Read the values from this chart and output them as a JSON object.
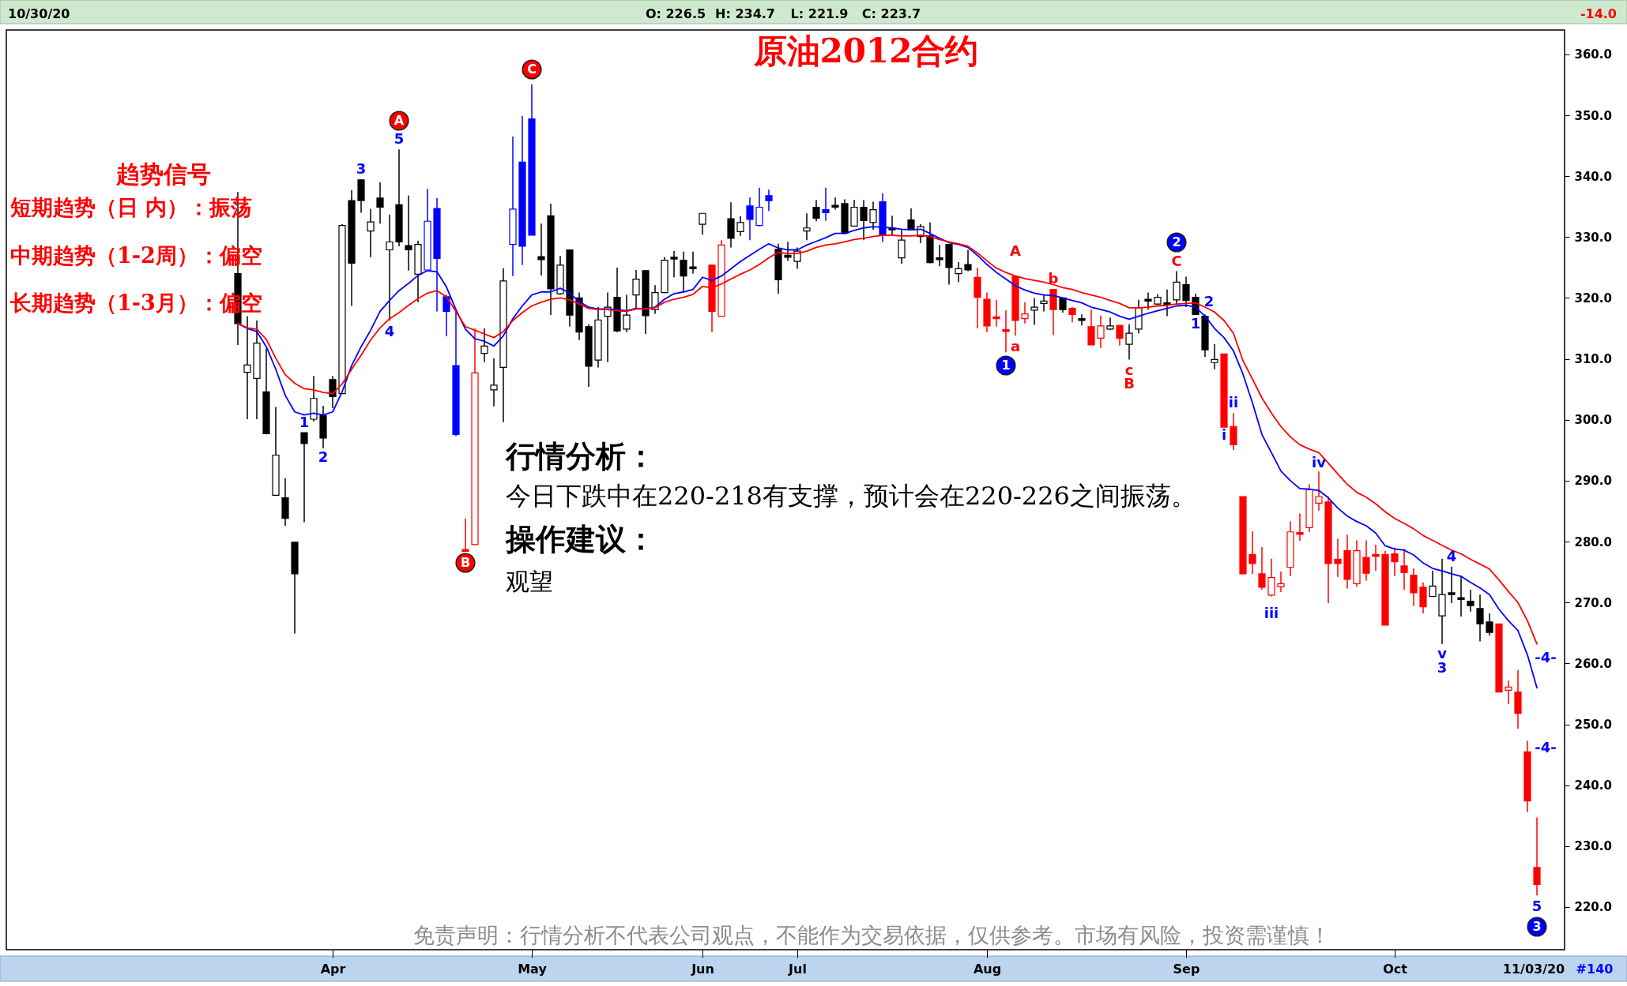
{
  "chart_data": {
    "type": "candlestick",
    "title": "原油2012合约",
    "categories": [
      null,
      null,
      null,
      null,
      null,
      null,
      null,
      null,
      null,
      null,
      "Apr",
      null,
      null,
      null,
      null,
      null,
      null,
      null,
      null,
      null,
      null,
      null,
      null,
      null,
      null,
      null,
      null,
      null,
      null,
      null,
      null,
      "May",
      null,
      null,
      null,
      null,
      null,
      null,
      null,
      null,
      null,
      null,
      null,
      null,
      null,
      null,
      null,
      null,
      null,
      "Jun",
      null,
      null,
      null,
      null,
      null,
      null,
      null,
      null,
      null,
      "Jul",
      null,
      null,
      null,
      null,
      null,
      null,
      null,
      null,
      null,
      null,
      null,
      null,
      null,
      null,
      null,
      null,
      null,
      null,
      null,
      "Aug",
      null,
      null,
      null,
      null,
      null,
      null,
      null,
      null,
      null,
      null,
      null,
      null,
      null,
      null,
      null,
      null,
      null,
      null,
      null,
      null,
      "Sep",
      null,
      null,
      null,
      null,
      null,
      null,
      null,
      null,
      null,
      null,
      null,
      null,
      null,
      null,
      null,
      null,
      null,
      null,
      null,
      null,
      null,
      "Oct",
      null,
      null,
      null,
      null,
      null,
      null,
      null,
      null,
      null,
      null,
      null,
      null,
      null,
      null,
      null
    ],
    "ohlc": [
      [
        324.0,
        337.4,
        312.3,
        315.8
      ],
      [
        307.8,
        317.0,
        300.1,
        309.0
      ],
      [
        306.8,
        316.3,
        300.1,
        312.6
      ],
      [
        304.6,
        311.7,
        297.6,
        297.7
      ],
      [
        287.6,
        302.1,
        287.6,
        294.2
      ],
      [
        287.2,
        290.4,
        282.6,
        283.8
      ],
      [
        279.9,
        279.9,
        264.9,
        274.7
      ],
      [
        297.9,
        297.9,
        283.2,
        296.1
      ],
      [
        300.1,
        307.2,
        299.7,
        303.5
      ],
      [
        300.7,
        302.3,
        295.3,
        297.0
      ],
      [
        306.6,
        307.2,
        301.9,
        303.8
      ],
      [
        304.3,
        332.1,
        304.3,
        331.9
      ],
      [
        336.0,
        337.7,
        318.7,
        325.7
      ],
      [
        339.4,
        339.4,
        334.0,
        336.0
      ],
      [
        331.0,
        334.6,
        326.7,
        332.5
      ],
      [
        336.4,
        339.0,
        332.2,
        334.9
      ],
      [
        327.9,
        333.7,
        316.3,
        329.2
      ],
      [
        335.3,
        344.4,
        328.5,
        329.2
      ],
      [
        328.6,
        336.8,
        324.5,
        327.9
      ],
      [
        323.9,
        329.4,
        319.3,
        328.8
      ],
      [
        324.6,
        337.9,
        324.5,
        332.6
      ],
      [
        334.7,
        336.4,
        317.8,
        326.5
      ],
      [
        320.2,
        320.5,
        313.7,
        317.8
      ],
      [
        308.9,
        318.1,
        297.3,
        297.6
      ],
      [
        278.7,
        283.8,
        278.3,
        278.4
      ],
      [
        279.5,
        315.0,
        279.5,
        307.7
      ],
      [
        310.9,
        315.0,
        309.5,
        312.1
      ],
      [
        304.9,
        310.1,
        302.2,
        305.7
      ],
      [
        308.6,
        324.9,
        299.6,
        322.8
      ],
      [
        328.8,
        346.5,
        323.6,
        334.6
      ],
      [
        342.3,
        349.9,
        325.4,
        328.5
      ],
      [
        349.4,
        355.1,
        330.3,
        330.3
      ],
      [
        326.8,
        332.2,
        323.7,
        326.3
      ],
      [
        333.5,
        335.5,
        317.2,
        321.5
      ],
      [
        320.7,
        326.9,
        320.5,
        325.4
      ],
      [
        327.9,
        327.9,
        315.3,
        317.2
      ],
      [
        320.0,
        320.9,
        313.1,
        314.4
      ],
      [
        315.3,
        315.7,
        305.4,
        308.8
      ],
      [
        309.8,
        318.5,
        308.6,
        316.4
      ],
      [
        317.0,
        320.9,
        309.5,
        318.5
      ],
      [
        320.1,
        325.0,
        314.4,
        314.6
      ],
      [
        314.9,
        320.5,
        314.4,
        317.2
      ],
      [
        320.5,
        324.6,
        318.3,
        323.1
      ],
      [
        324.5,
        324.5,
        314.1,
        317.1
      ],
      [
        318.1,
        322.1,
        317.4,
        320.9
      ],
      [
        320.9,
        326.7,
        320.8,
        326.2
      ],
      [
        326.7,
        327.7,
        323.4,
        326.4
      ],
      [
        326.2,
        327.6,
        321.1,
        323.6
      ],
      [
        325.1,
        327.6,
        324.0,
        324.8
      ],
      [
        332.1,
        333.9,
        330.4,
        333.9
      ],
      [
        325.4,
        325.4,
        314.4,
        317.8
      ],
      [
        317.0,
        329.5,
        317.0,
        328.7
      ],
      [
        333.0,
        335.7,
        328.3,
        329.8
      ],
      [
        330.9,
        333.4,
        330.2,
        332.4
      ],
      [
        335.1,
        336.5,
        329.5,
        332.9
      ],
      [
        331.9,
        338.1,
        331.8,
        334.9
      ],
      [
        336.8,
        337.8,
        334.3,
        336.0
      ],
      [
        328.0,
        328.9,
        320.7,
        323.0
      ],
      [
        327.0,
        329.2,
        326.1,
        326.7
      ],
      [
        326.0,
        328.3,
        324.8,
        327.7
      ],
      [
        331.0,
        333.9,
        329.5,
        331.5
      ],
      [
        334.9,
        336.1,
        332.6,
        333.1
      ],
      [
        334.5,
        338.1,
        332.7,
        334.0
      ],
      [
        335.2,
        336.5,
        334.5,
        334.9
      ],
      [
        335.5,
        336.2,
        330.5,
        330.6
      ],
      [
        331.8,
        336.1,
        331.8,
        334.9
      ],
      [
        334.9,
        336.1,
        329.5,
        332.7
      ],
      [
        332.4,
        335.8,
        331.2,
        334.5
      ],
      [
        335.8,
        337.2,
        329.2,
        330.3
      ],
      [
        331.5,
        333.5,
        330.3,
        331.2
      ],
      [
        326.6,
        331.2,
        325.6,
        329.5
      ],
      [
        332.8,
        334.7,
        331.1,
        331.2
      ],
      [
        330.1,
        332.1,
        329.0,
        331.7
      ],
      [
        330.2,
        332.4,
        325.7,
        325.8
      ],
      [
        326.6,
        328.7,
        325.2,
        326.3
      ],
      [
        328.8,
        328.8,
        322.2,
        325.0
      ],
      [
        324.0,
        325.9,
        322.6,
        324.8
      ],
      [
        325.5,
        327.9,
        324.4,
        324.6
      ],
      [
        323.4,
        325.0,
        315.0,
        320.1
      ],
      [
        319.8,
        320.9,
        314.4,
        315.4
      ],
      [
        316.9,
        319.7,
        315.3,
        316.6
      ],
      [
        314.8,
        318.0,
        311.1,
        314.5
      ],
      [
        323.5,
        323.6,
        313.8,
        316.3
      ],
      [
        316.6,
        319.3,
        315.8,
        317.4
      ],
      [
        318.0,
        320.0,
        315.6,
        318.5
      ],
      [
        319.1,
        320.5,
        317.8,
        319.5
      ],
      [
        321.4,
        321.4,
        313.9,
        318.1
      ],
      [
        320.0,
        320.0,
        317.6,
        318.1
      ],
      [
        318.3,
        318.5,
        316.0,
        317.3
      ],
      [
        316.6,
        317.3,
        315.5,
        316.3
      ],
      [
        315.3,
        318.1,
        312.3,
        312.3
      ],
      [
        313.4,
        317.1,
        311.8,
        315.4
      ],
      [
        314.9,
        316.8,
        314.7,
        315.4
      ],
      [
        315.5,
        315.5,
        312.2,
        313.4
      ],
      [
        312.4,
        315.7,
        309.9,
        314.2
      ],
      [
        314.9,
        319.7,
        314.2,
        318.4
      ],
      [
        319.8,
        320.9,
        318.1,
        319.5
      ],
      [
        319.0,
        320.6,
        318.9,
        320.1
      ],
      [
        319.2,
        321.4,
        317.0,
        318.9
      ],
      [
        319.7,
        324.4,
        319.0,
        322.6
      ],
      [
        322.2,
        323.5,
        318.5,
        319.6
      ],
      [
        320.1,
        320.7,
        317.3,
        317.3
      ],
      [
        317.0,
        317.3,
        310.3,
        311.5
      ],
      [
        309.4,
        312.4,
        308.3,
        309.9
      ],
      [
        310.8,
        310.8,
        298.8,
        298.8
      ],
      [
        298.9,
        301.1,
        295.0,
        295.9
      ],
      [
        287.4,
        287.4,
        274.7,
        274.7
      ],
      [
        277.9,
        281.7,
        274.7,
        276.4
      ],
      [
        274.7,
        279.1,
        272.1,
        272.5
      ],
      [
        271.2,
        277.2,
        271.0,
        274.1
      ],
      [
        272.6,
        275.1,
        271.7,
        273.1
      ],
      [
        275.8,
        283.3,
        274.3,
        281.6
      ],
      [
        281.5,
        284.6,
        280.1,
        281.2
      ],
      [
        282.3,
        289.4,
        281.6,
        288.5
      ],
      [
        286.3,
        291.5,
        285.1,
        287.4
      ],
      [
        286.5,
        287.4,
        269.9,
        276.4
      ],
      [
        277.1,
        280.5,
        274.2,
        276.4
      ],
      [
        278.5,
        281.1,
        272.3,
        273.8
      ],
      [
        273.1,
        280.2,
        272.6,
        278.5
      ],
      [
        277.4,
        280.2,
        273.6,
        274.8
      ],
      [
        277.9,
        279.5,
        275.2,
        277.6
      ],
      [
        277.9,
        278.5,
        266.3,
        266.3
      ],
      [
        278.0,
        279.0,
        274.3,
        276.7
      ],
      [
        276.0,
        278.8,
        272.1,
        274.9
      ],
      [
        274.5,
        275.6,
        269.4,
        271.6
      ],
      [
        272.5,
        273.3,
        268.2,
        269.3
      ],
      [
        271.0,
        275.2,
        271.0,
        272.7
      ],
      [
        267.8,
        277.2,
        263.2,
        271.3
      ],
      [
        271.6,
        275.9,
        269.9,
        271.3
      ],
      [
        270.8,
        274.4,
        267.7,
        270.5
      ],
      [
        270.2,
        272.1,
        268.5,
        269.5
      ],
      [
        269.0,
        271.3,
        263.6,
        266.5
      ],
      [
        266.8,
        268.2,
        264.6,
        265.1
      ],
      [
        266.5,
        266.5,
        255.3,
        255.3
      ],
      [
        255.6,
        257.2,
        253.3,
        256.1
      ],
      [
        255.3,
        258.9,
        249.3,
        251.8
      ],
      [
        245.5,
        247.3,
        235.6,
        237.4
      ],
      [
        226.5,
        234.7,
        221.9,
        223.7
      ]
    ],
    "colors": [
      "#000000",
      "#000000",
      "#000000",
      "#000000",
      "#000000",
      "#000000",
      "#000000",
      "#000000",
      "#000000",
      "#000000",
      "#000000",
      "#000000",
      "#000000",
      "#000000",
      "#000000",
      "#000000",
      "#000000",
      "#000000",
      "#000000",
      "#000000",
      "#0000ff",
      "#0000ff",
      "#0000ff",
      "#0000ff",
      "#ff0000",
      "#ff0000",
      "#000000",
      "#000000",
      "#000000",
      "#0000ff",
      "#0000ff",
      "#0000ff",
      "#000000",
      "#000000",
      "#000000",
      "#000000",
      "#000000",
      "#000000",
      "#000000",
      "#000000",
      "#000000",
      "#000000",
      "#000000",
      "#000000",
      "#000000",
      "#000000",
      "#000000",
      "#000000",
      "#000000",
      "#000000",
      "#ff0000",
      "#ff0000",
      "#000000",
      "#000000",
      "#0000ff",
      "#0000ff",
      "#0000ff",
      "#000000",
      "#000000",
      "#000000",
      "#000000",
      "#000000",
      "#0000ff",
      "#000000",
      "#000000",
      "#000000",
      "#000000",
      "#000000",
      "#0000ff",
      "#000000",
      "#000000",
      "#000000",
      "#000000",
      "#000000",
      "#000000",
      "#000000",
      "#000000",
      "#000000",
      "#ff0000",
      "#ff0000",
      "#ff0000",
      "#ff0000",
      "#ff0000",
      "#ff0000",
      "#000000",
      "#000000",
      "#ff0000",
      "#000000",
      "#ff0000",
      "#000000",
      "#ff0000",
      "#ff0000",
      "#000000",
      "#ff0000",
      "#000000",
      "#000000",
      "#000000",
      "#000000",
      "#000000",
      "#000000",
      "#000000",
      "#000000",
      "#000000",
      "#000000",
      "#ff0000",
      "#ff0000",
      "#ff0000",
      "#ff0000",
      "#ff0000",
      "#ff0000",
      "#ff0000",
      "#ff0000",
      "#ff0000",
      "#ff0000",
      "#ff0000",
      "#ff0000",
      "#ff0000",
      "#ff0000",
      "#ff0000",
      "#ff0000",
      "#ff0000",
      "#ff0000",
      "#ff0000",
      "#ff0000",
      "#ff0000",
      "#ff0000",
      "#000000",
      "#000000",
      "#000000",
      "#000000",
      "#000000",
      "#000000",
      "#000000",
      "#ff0000",
      "#ff0000",
      "#ff0000",
      "#ff0000",
      "#ff0000"
    ],
    "series": [
      {
        "type": "line",
        "color": "#0000ff",
        "values": [
          315.8,
          315.0,
          314.5,
          312.0,
          308.3,
          304.0,
          301.3,
          300.8,
          301.1,
          300.8,
          301.3,
          304.6,
          308.9,
          312.0,
          314.7,
          317.8,
          319.6,
          321.2,
          322.4,
          323.7,
          324.5,
          324.3,
          321.8,
          318.1,
          314.9,
          313.3,
          312.9,
          312.1,
          313.8,
          316.6,
          318.7,
          320.5,
          321.0,
          321.0,
          321.6,
          320.8,
          319.4,
          318.5,
          318.2,
          318.2,
          318.1,
          317.9,
          318.3,
          318.2,
          318.5,
          319.8,
          320.7,
          321.0,
          321.4,
          323.4,
          322.9,
          323.6,
          324.8,
          326.0,
          327.0,
          328.0,
          328.9,
          328.2,
          327.9,
          327.9,
          328.7,
          329.3,
          329.9,
          330.6,
          330.6,
          331.1,
          331.5,
          331.7,
          331.6,
          331.5,
          331.3,
          331.2,
          331.3,
          330.6,
          329.8,
          329.1,
          328.8,
          328.3,
          327.0,
          325.5,
          324.2,
          323.1,
          322.0,
          321.3,
          320.8,
          320.5,
          320.4,
          320.0,
          319.6,
          319.2,
          318.5,
          318.1,
          317.7,
          317.0,
          316.5,
          317.0,
          317.5,
          317.9,
          318.3,
          318.7,
          318.8,
          318.5,
          317.0,
          315.0,
          313.5,
          311.3,
          307.5,
          302.8,
          297.6,
          294.6,
          291.6,
          290.0,
          288.7,
          288.6,
          288.4,
          287.2,
          285.5,
          284.2,
          283.3,
          282.6,
          281.4,
          279.3,
          278.8,
          278.6,
          277.8,
          276.5,
          275.6,
          275.2,
          274.7,
          274.3,
          273.3,
          272.4,
          271.3,
          268.9,
          267.0,
          265.4,
          261.4,
          256.0
        ]
      },
      {
        "type": "line",
        "color": "#ff0000",
        "values": [
          315.8,
          315.1,
          314.9,
          313.2,
          310.1,
          307.4,
          306.0,
          305.1,
          304.9,
          304.5,
          304.3,
          305.9,
          308.3,
          310.6,
          313.1,
          315.1,
          316.6,
          317.6,
          318.8,
          319.9,
          320.8,
          321.2,
          320.2,
          317.8,
          315.3,
          314.7,
          314.1,
          313.5,
          314.5,
          316.3,
          317.6,
          318.7,
          319.3,
          319.8,
          320.0,
          319.7,
          319.0,
          318.3,
          318.1,
          318.1,
          317.9,
          317.8,
          318.2,
          318.2,
          318.4,
          319.3,
          319.8,
          320.1,
          320.6,
          321.9,
          321.7,
          322.3,
          323.1,
          323.9,
          324.6,
          325.5,
          326.6,
          327.5,
          327.3,
          327.3,
          327.7,
          328.3,
          328.7,
          328.9,
          329.2,
          329.6,
          329.8,
          330.1,
          330.3,
          330.3,
          330.2,
          330.2,
          330.3,
          330.1,
          329.6,
          329.2,
          328.9,
          328.5,
          327.4,
          326.1,
          324.9,
          324.2,
          323.6,
          323.2,
          322.9,
          322.6,
          322.2,
          321.7,
          321.4,
          320.9,
          320.5,
          320.1,
          319.6,
          319.1,
          318.4,
          318.4,
          318.5,
          318.7,
          318.8,
          319.0,
          319.1,
          319.2,
          318.5,
          317.7,
          316.3,
          314.2,
          309.7,
          306.7,
          303.6,
          301.1,
          298.9,
          297.2,
          295.9,
          295.2,
          294.6,
          292.9,
          291.1,
          289.4,
          288.1,
          287.3,
          286.2,
          284.9,
          283.8,
          283.0,
          282.1,
          281.0,
          280.2,
          279.4,
          278.6,
          278.0,
          277.1,
          276.3,
          275.5,
          273.7,
          271.8,
          270.0,
          267.0,
          263.2
        ]
      }
    ],
    "ylim": [
      213,
      364
    ],
    "yticks": [
      {
        "value": 220,
        "label": "220.0"
      },
      {
        "value": 230,
        "label": "230.0"
      },
      {
        "value": 240,
        "label": "240.0"
      },
      {
        "value": 250,
        "label": "250.0"
      },
      {
        "value": 260,
        "label": "260.0"
      },
      {
        "value": 270,
        "label": "270.0"
      },
      {
        "value": 280,
        "label": "280.0"
      },
      {
        "value": 290,
        "label": "290.0"
      },
      {
        "value": 300,
        "label": "300.0"
      },
      {
        "value": 310,
        "label": "310.0"
      },
      {
        "value": 320,
        "label": "320.0"
      },
      {
        "value": 330,
        "label": "330.0"
      },
      {
        "value": 340,
        "label": "340.0"
      },
      {
        "value": 350,
        "label": "350.0"
      },
      {
        "value": 360,
        "label": "360.0"
      }
    ],
    "annotations": [
      "趋势信号",
      "短期趋势（日 内）：振荡",
      "中期趋势（1-2周）：偏空",
      "长期趋势（1-3月）：偏空",
      "行情分析：",
      "今日下跌中在220-218有支撑，预计会在220-226之间振荡。",
      "操作建议：",
      "观望",
      "免责声明：行情分析不代表公司观点，不能作为交易依据，仅供参考。市场有风险，投资需谨慎！",
      "10/30/20",
      "O: 226.5",
      "H: 234.7",
      "L: 221.9",
      "C: 223.7",
      "-14.0",
      "11/03/20",
      "#140",
      "A",
      "5",
      "3",
      "4",
      "1",
      "2",
      "B",
      "C",
      "A",
      "a",
      "1",
      "b",
      "c",
      "B",
      "2",
      "C",
      "2",
      "1",
      "i",
      "ii",
      "iii",
      "iv",
      "v",
      "3",
      "4",
      "-4-",
      "-4-",
      "5",
      "3"
    ]
  }
}
